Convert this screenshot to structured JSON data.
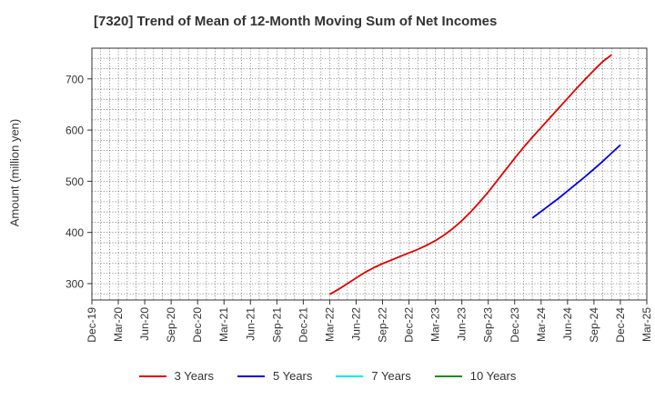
{
  "chart_data": {
    "type": "line",
    "title": "[7320]  Trend of Mean of 12-Month Moving Sum of Net Incomes",
    "ylabel": "Amount (million yen)",
    "xlabel": "",
    "x_categories": [
      "Dec-19",
      "Mar-20",
      "Jun-20",
      "Sep-20",
      "Dec-20",
      "Mar-21",
      "Jun-21",
      "Sep-21",
      "Dec-21",
      "Mar-22",
      "Jun-22",
      "Sep-22",
      "Dec-22",
      "Mar-23",
      "Jun-23",
      "Sep-23",
      "Dec-23",
      "Mar-24",
      "Jun-24",
      "Sep-24",
      "Dec-24",
      "Mar-25"
    ],
    "ylim": [
      268,
      760
    ],
    "yticks": [
      300,
      400,
      500,
      600,
      700
    ],
    "grid": true,
    "legend_placement": "bottom",
    "series": [
      {
        "name": "3 Years",
        "color": "#e00000",
        "points": [
          [
            "Mar-22",
            279
          ],
          [
            "Apr-22",
            289
          ],
          [
            "May-22",
            300
          ],
          [
            "Jun-22",
            311
          ],
          [
            "Jul-22",
            322
          ],
          [
            "Aug-22",
            331
          ],
          [
            "Sep-22",
            339
          ],
          [
            "Oct-22",
            346
          ],
          [
            "Nov-22",
            353
          ],
          [
            "Dec-22",
            360
          ],
          [
            "Jan-23",
            367
          ],
          [
            "Feb-23",
            375
          ],
          [
            "Mar-23",
            384
          ],
          [
            "Apr-23",
            395
          ],
          [
            "May-23",
            408
          ],
          [
            "Jun-23",
            423
          ],
          [
            "Jul-23",
            440
          ],
          [
            "Aug-23",
            459
          ],
          [
            "Sep-23",
            479
          ],
          [
            "Oct-23",
            501
          ],
          [
            "Nov-23",
            523
          ],
          [
            "Dec-23",
            545
          ],
          [
            "Jan-24",
            566
          ],
          [
            "Feb-24",
            586
          ],
          [
            "Mar-24",
            605
          ],
          [
            "Apr-24",
            624
          ],
          [
            "May-24",
            643
          ],
          [
            "Jun-24",
            662
          ],
          [
            "Jul-24",
            681
          ],
          [
            "Aug-24",
            699
          ],
          [
            "Sep-24",
            717
          ],
          [
            "Oct-24",
            734
          ],
          [
            "Nov-24",
            747
          ]
        ]
      },
      {
        "name": "5 Years",
        "color": "#0000dd",
        "points": [
          [
            "Feb-24",
            428
          ],
          [
            "Mar-24",
            441
          ],
          [
            "Apr-24",
            454
          ],
          [
            "May-24",
            467
          ],
          [
            "Jun-24",
            481
          ],
          [
            "Jul-24",
            495
          ],
          [
            "Aug-24",
            509
          ],
          [
            "Sep-24",
            524
          ],
          [
            "Oct-24",
            539
          ],
          [
            "Nov-24",
            555
          ],
          [
            "Dec-24",
            571
          ]
        ]
      },
      {
        "name": "7 Years",
        "color": "#00e5ee",
        "points": []
      },
      {
        "name": "10 Years",
        "color": "#228b22",
        "points": []
      }
    ]
  }
}
